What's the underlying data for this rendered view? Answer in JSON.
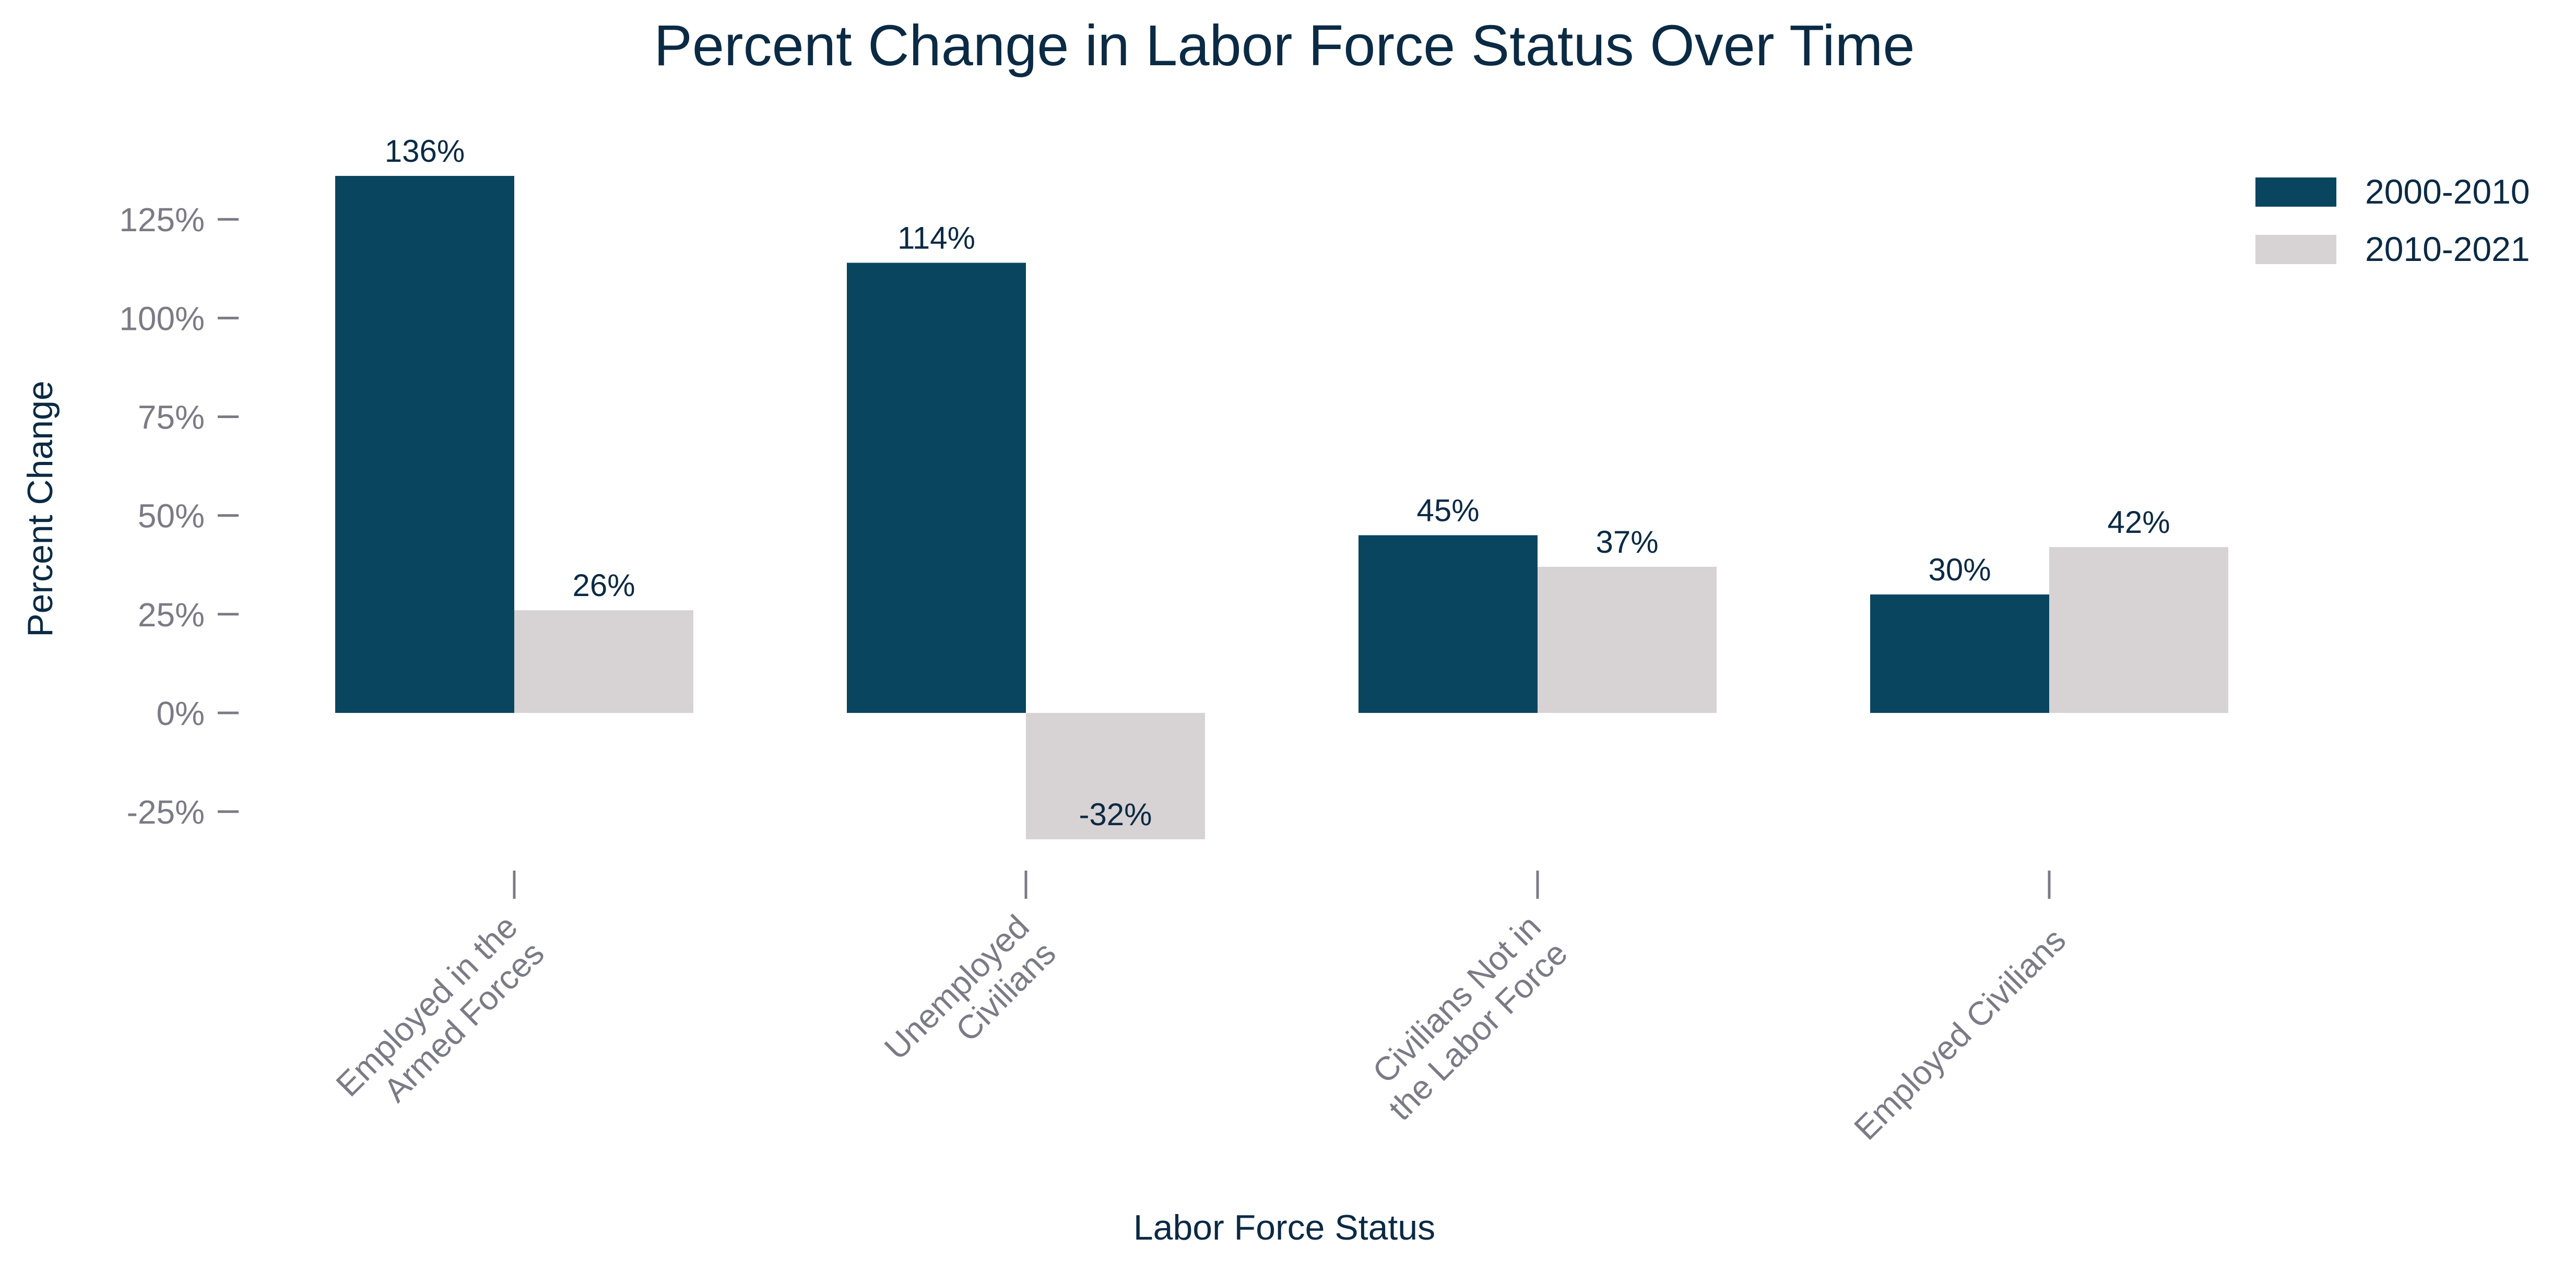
{
  "chart_data": {
    "type": "bar",
    "title": "Percent Change in Labor Force Status Over Time",
    "xlabel": "Labor Force Status",
    "ylabel": "Percent Change",
    "categories": [
      [
        "Employed in the",
        "Armed Forces"
      ],
      [
        "Unemployed",
        "Civilians"
      ],
      [
        "Civilians Not in",
        "the Labor Force"
      ],
      [
        "Employed Civilians"
      ]
    ],
    "series": [
      {
        "name": "2000-2010",
        "values": [
          136,
          114,
          45,
          30
        ],
        "labels": [
          "136%",
          "114%",
          "45%",
          "30%"
        ],
        "color": "#0a4560"
      },
      {
        "name": "2010-2021",
        "values": [
          26,
          -32,
          37,
          42
        ],
        "labels": [
          "26%",
          "-32%",
          "37%",
          "42%"
        ],
        "color": "#d7d2d4"
      }
    ],
    "yticks": [
      -25,
      0,
      25,
      50,
      75,
      100,
      125
    ],
    "ytick_labels": [
      "-25%",
      "0%",
      "25%",
      "50%",
      "75%",
      "100%",
      "125%"
    ],
    "ylim": [
      -32,
      136
    ],
    "grid": false,
    "legend": "top-right",
    "colors": {
      "title": "#0b2a44",
      "label_text": "#0b2a44",
      "tick_text": "#7b7b86",
      "tick_mark": "#7b7b86"
    }
  }
}
